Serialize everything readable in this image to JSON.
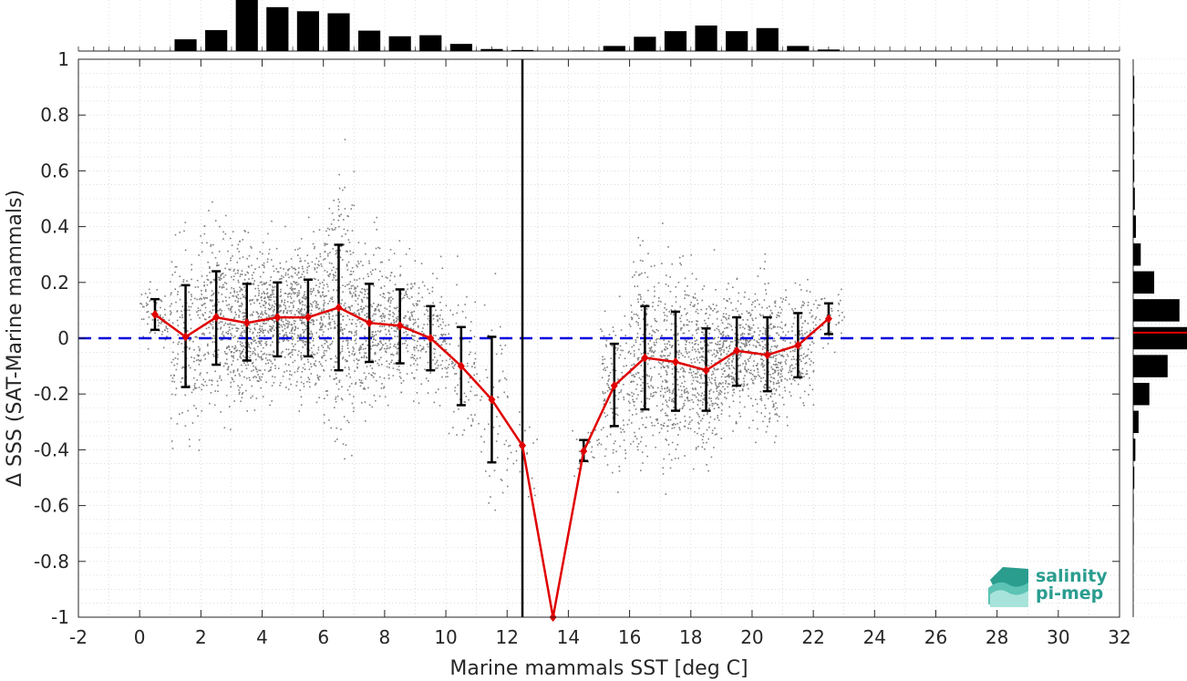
{
  "chart_data": {
    "type": "scatter",
    "xlabel": "Marine mammals SST [deg C]",
    "ylabel": "Δ SSS (SAT-Marine mammals)",
    "xlim": [
      -2,
      32
    ],
    "ylim": [
      -1,
      1
    ],
    "xticks": [
      -2,
      0,
      2,
      4,
      6,
      8,
      10,
      12,
      14,
      16,
      18,
      20,
      22,
      24,
      26,
      28,
      30,
      32
    ],
    "yticks": [
      -1,
      -0.8,
      -0.6,
      -0.4,
      -0.2,
      0,
      0.2,
      0.4,
      0.6,
      0.8,
      1
    ],
    "xtick_labels": [
      "-2",
      "0",
      "2",
      "4",
      "6",
      "8",
      "10",
      "12",
      "14",
      "16",
      "18",
      "20",
      "22",
      "24",
      "26",
      "28",
      "30",
      "32"
    ],
    "ytick_labels": [
      "-1",
      "-0.8",
      "-0.6",
      "-0.4",
      "-0.2",
      "0",
      "0.2",
      "0.4",
      "0.6",
      "0.8",
      "1"
    ],
    "grid": "dotted",
    "zero_line": 0,
    "vertical_line_x": 12.5,
    "binned_mean": {
      "x": [
        0.5,
        1.5,
        2.5,
        3.5,
        4.5,
        5.5,
        6.5,
        7.5,
        8.5,
        9.5,
        10.5,
        11.5,
        12.5,
        13.5,
        14.5,
        15.5,
        16.5,
        17.5,
        18.5,
        19.5,
        20.5,
        21.5,
        22.5
      ],
      "y": [
        0.085,
        0.005,
        0.075,
        0.055,
        0.075,
        0.075,
        0.11,
        0.055,
        0.045,
        0.0,
        -0.1,
        -0.22,
        -0.385,
        -1.0,
        -0.405,
        -0.17,
        -0.07,
        -0.085,
        -0.115,
        -0.045,
        -0.06,
        -0.025,
        0.07
      ],
      "err_low": [
        0.03,
        -0.175,
        -0.095,
        -0.08,
        -0.065,
        -0.065,
        -0.115,
        -0.085,
        -0.09,
        -0.115,
        -0.24,
        -0.445,
        null,
        null,
        -0.44,
        -0.315,
        -0.255,
        -0.26,
        -0.26,
        -0.17,
        -0.19,
        -0.14,
        0.015
      ],
      "err_high": [
        0.14,
        0.19,
        0.24,
        0.195,
        0.2,
        0.21,
        0.335,
        0.195,
        0.175,
        0.115,
        0.04,
        0.005,
        null,
        null,
        -0.365,
        -0.02,
        0.115,
        0.095,
        0.035,
        0.075,
        0.075,
        0.09,
        0.125
      ]
    },
    "top_histogram": {
      "bins": [
        0.5,
        1.5,
        2.5,
        3.5,
        4.5,
        5.5,
        6.5,
        7.5,
        8.5,
        9.5,
        10.5,
        11.5,
        12.5,
        13.5,
        14.5,
        15.5,
        16.5,
        17.5,
        18.5,
        19.5,
        20.5,
        21.5,
        22.5
      ],
      "relative_counts": [
        0.0,
        0.23,
        0.41,
        1.0,
        0.86,
        0.78,
        0.74,
        0.4,
        0.29,
        0.31,
        0.14,
        0.04,
        0.02,
        0.0,
        0.01,
        0.1,
        0.28,
        0.39,
        0.5,
        0.39,
        0.45,
        0.1,
        0.03
      ]
    },
    "right_histogram": {
      "bins": [
        0.9,
        0.8,
        0.7,
        0.6,
        0.5,
        0.4,
        0.3,
        0.2,
        0.1,
        0.0,
        -0.1,
        -0.2,
        -0.3,
        -0.4,
        -0.5,
        -0.6,
        -0.7
      ],
      "relative_counts": [
        0.02,
        0.02,
        0.02,
        0.02,
        0.03,
        0.05,
        0.14,
        0.39,
        0.86,
        1.0,
        0.64,
        0.3,
        0.1,
        0.04,
        0.02,
        0.01,
        0.01
      ],
      "median_line": 0.02
    },
    "colors": {
      "scatter": "#808080",
      "mean_line": "#e00000",
      "error_bars": "#000000",
      "zero_line": "#0000e0",
      "vertical_line": "#000000",
      "histograms": "#000000"
    }
  },
  "logo": {
    "line1": "salinity",
    "line2": "pi-mep"
  }
}
